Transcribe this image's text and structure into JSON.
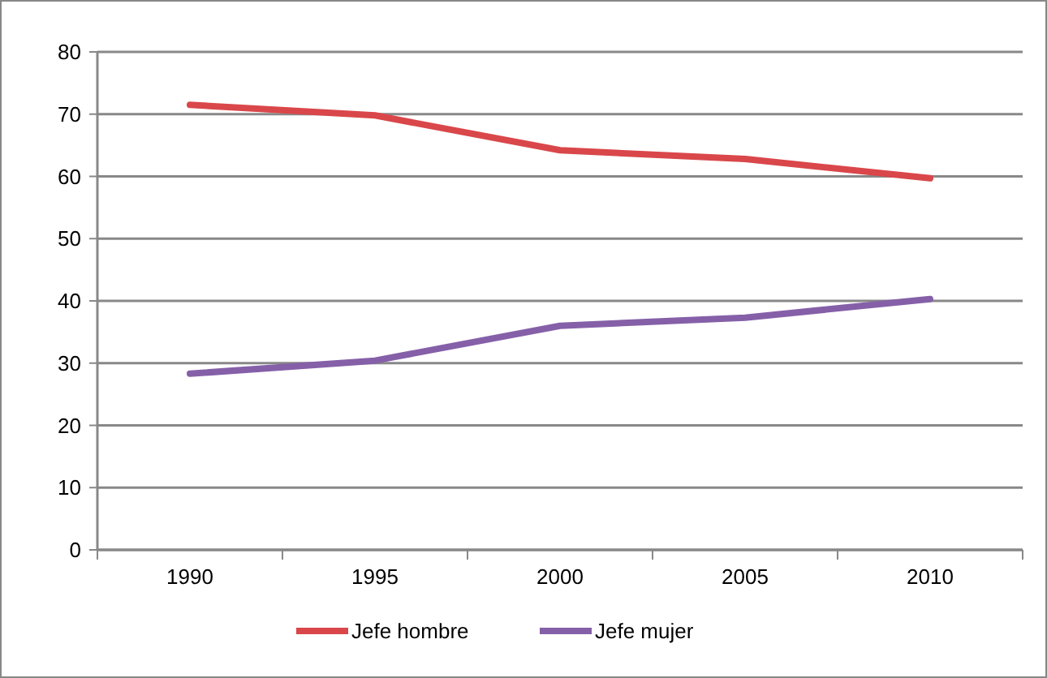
{
  "chart_data": {
    "type": "line",
    "categories": [
      "1990",
      "1995",
      "2000",
      "2005",
      "2010"
    ],
    "series": [
      {
        "name": "Jefe hombre",
        "color": "#d9474a",
        "values": [
          71.5,
          69.8,
          64.2,
          62.8,
          59.7
        ]
      },
      {
        "name": "Jefe mujer",
        "color": "#8560a8",
        "values": [
          28.3,
          30.4,
          36.0,
          37.3,
          40.3
        ]
      }
    ],
    "ylim": [
      0,
      80
    ],
    "yticks": [
      0,
      10,
      20,
      30,
      40,
      50,
      60,
      70,
      80
    ],
    "grid": "y",
    "legend": "bottom",
    "marker": "none",
    "line_style": "solid"
  }
}
